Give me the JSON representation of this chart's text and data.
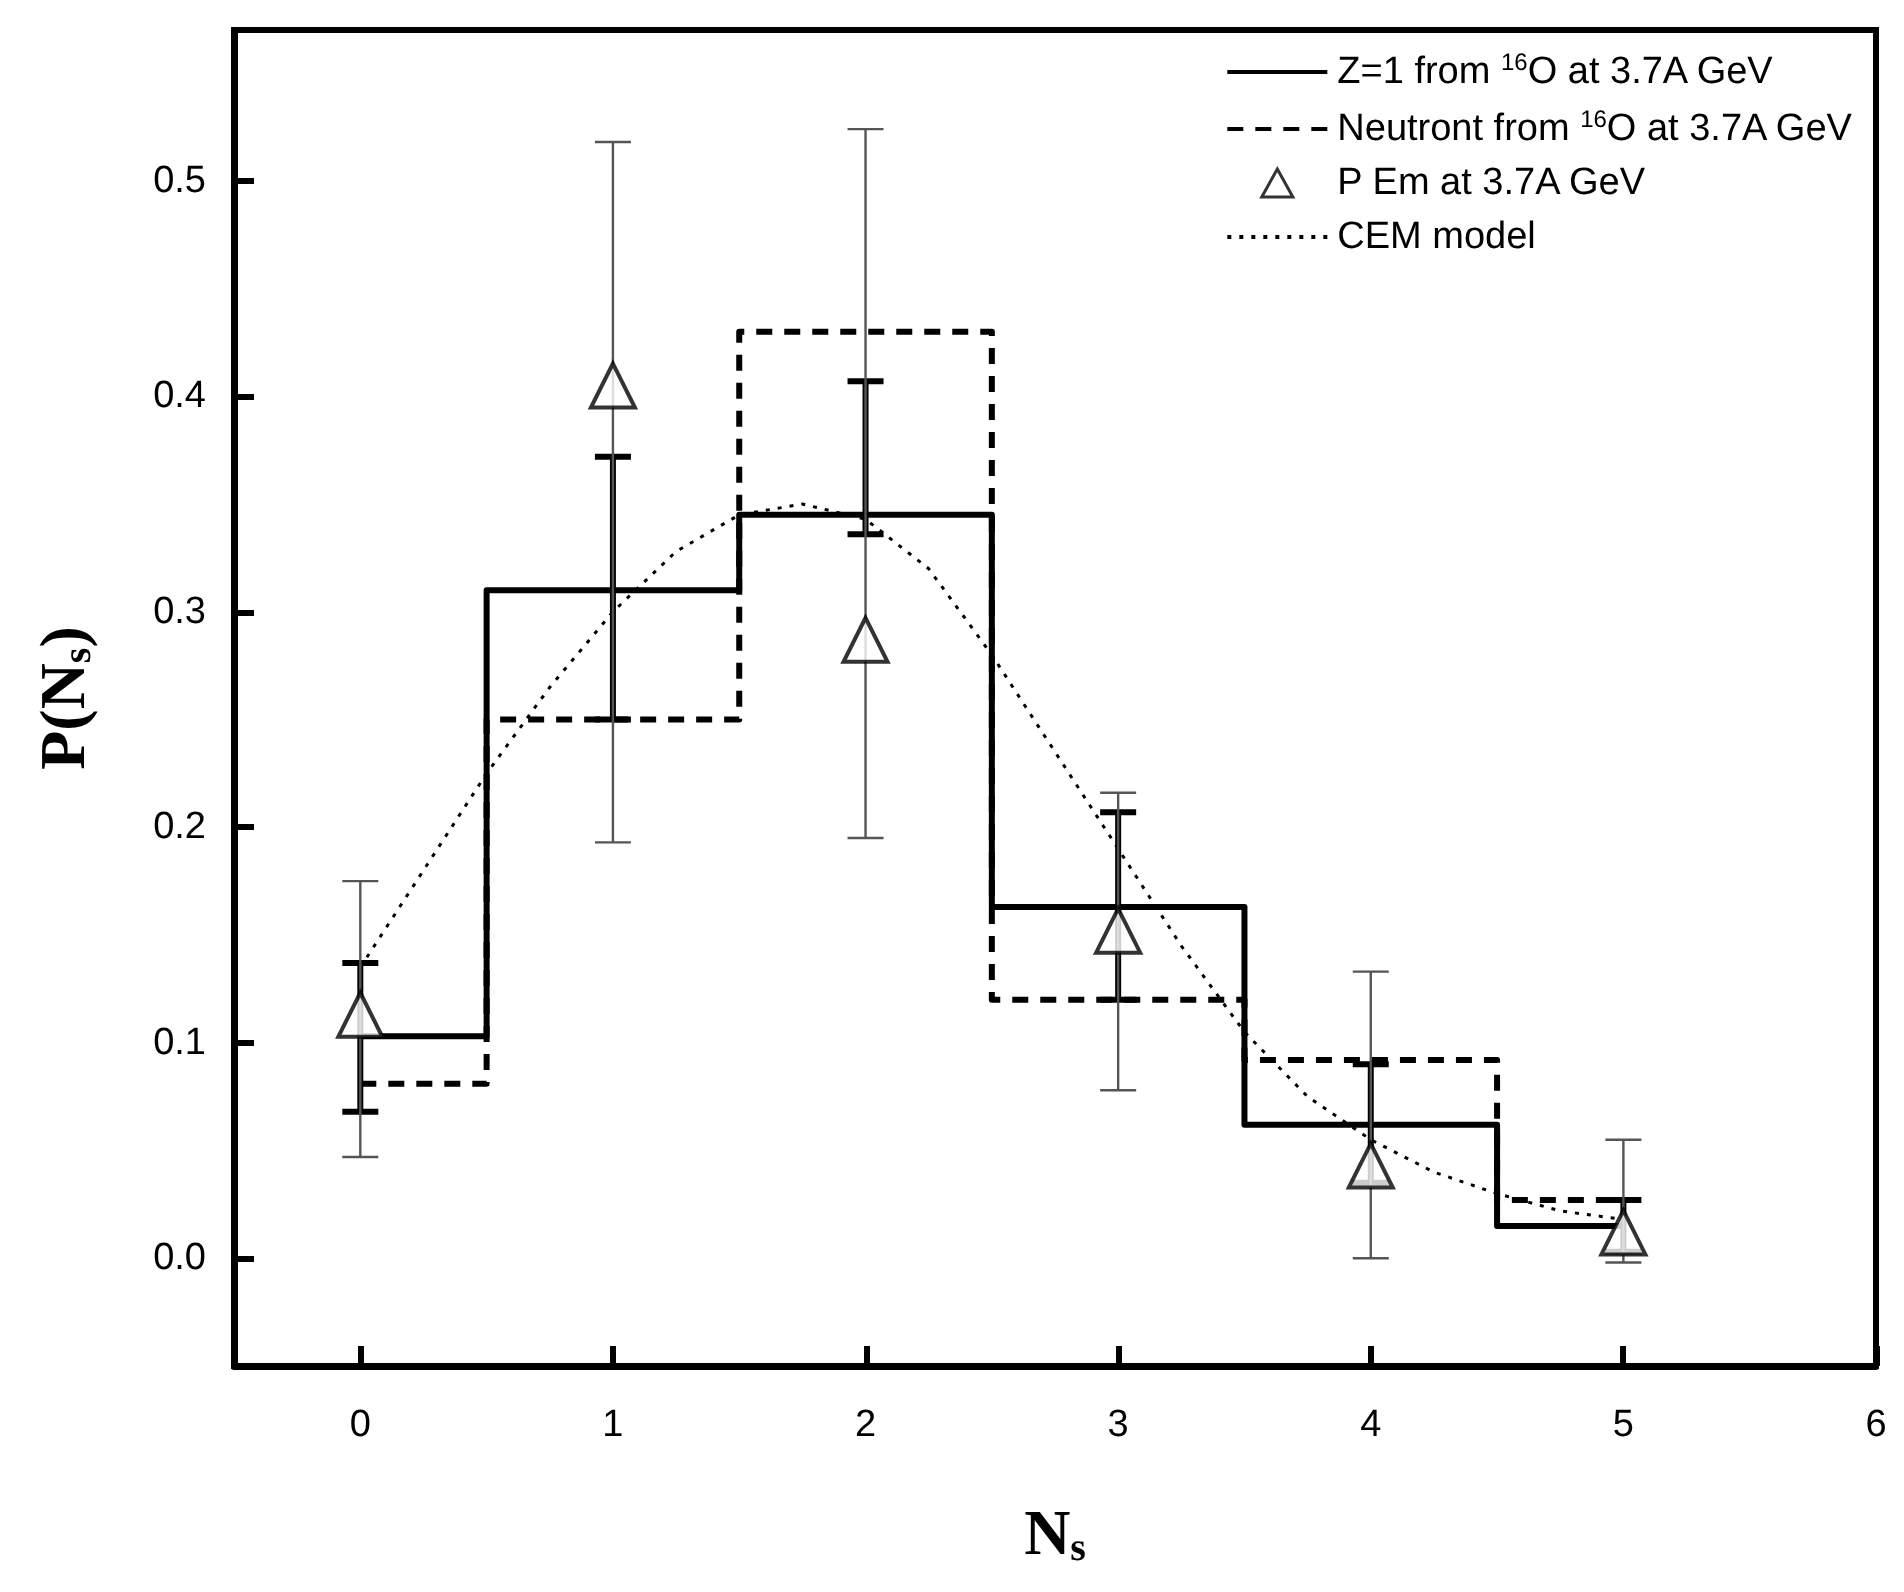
{
  "chart_data": {
    "type": "step",
    "xlabel": "N$_{s}$",
    "ylabel": "P(N$_{s}$)",
    "xlim": [
      -0.5,
      6
    ],
    "xticks": [
      0,
      1,
      2,
      3,
      4,
      5,
      6
    ],
    "ylim": [
      -0.05,
      0.57
    ],
    "yticks": [
      {
        "value": 0,
        "label": "0.0"
      },
      0.1,
      0.2,
      0.3,
      0.4,
      0.5
    ],
    "grid": false,
    "legend": "top right",
    "series": [
      {
        "name": "Z=1 from $^{16}$O at 3.7A GeV",
        "color": "#000000",
        "marker": "none",
        "line_style": "solid",
        "x": [
          0,
          1,
          2,
          3,
          4,
          5
        ],
        "values": [
          0.103,
          0.31,
          0.345,
          0.163,
          0.062,
          0.015
        ],
        "errors": [
          [
            0.068,
            0.137
          ],
          [
            0.25,
            0.372
          ],
          [
            0.336,
            0.407
          ],
          [
            0.12,
            0.207
          ],
          [
            0.035,
            0.09
          ],
          [
            0.003,
            0.027
          ]
        ]
      },
      {
        "name": "Neutront from $^{16}$O at 3.7A GeV",
        "color": "#000000",
        "marker": "none",
        "line_style": "dashed",
        "x": [
          0,
          1,
          2,
          3,
          4,
          5
        ],
        "values": [
          0.081,
          0.25,
          0.43,
          0.12,
          0.092,
          0.027
        ]
      },
      {
        "name": "P Em at 3.7A GeV",
        "type": "scatter",
        "color": "#000000",
        "marker": "triangle",
        "x": [
          0,
          1,
          2,
          3,
          4,
          5
        ],
        "values": [
          0.113,
          0.405,
          0.287,
          0.152,
          0.043,
          0.012
        ],
        "errors": [
          [
            0.047,
            0.175
          ],
          [
            0.193,
            0.518
          ],
          [
            0.195,
            0.524
          ],
          [
            0.078,
            0.216
          ],
          [
            0,
            0.133
          ],
          [
            -0.002,
            0.055
          ]
        ]
      },
      {
        "name": "CEM model",
        "type": "line",
        "color": "#000000",
        "marker": "none",
        "line_style": "dotted",
        "x": [
          0,
          0.25,
          0.5,
          0.75,
          1,
          1.25,
          1.5,
          1.75,
          2,
          2.25,
          2.5,
          2.75,
          3,
          3.25,
          3.5,
          3.75,
          4,
          4.25,
          4.5,
          4.75,
          5
        ],
        "values": [
          0.135,
          0.18,
          0.225,
          0.265,
          0.3,
          0.328,
          0.345,
          0.35,
          0.343,
          0.32,
          0.28,
          0.235,
          0.19,
          0.145,
          0.105,
          0.075,
          0.055,
          0.04,
          0.03,
          0.022,
          0.018
        ]
      }
    ]
  }
}
